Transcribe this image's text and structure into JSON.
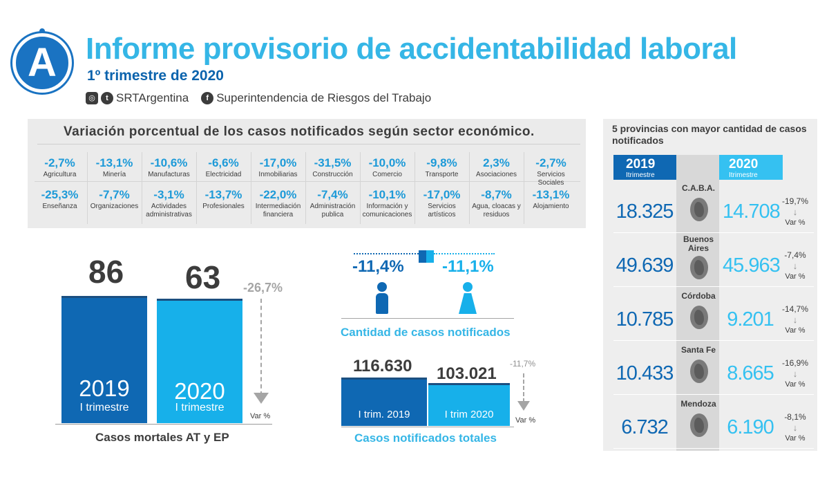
{
  "header": {
    "logo_letter": "A",
    "title": "Informe provisorio de accidentabilidad laboral",
    "subtitle": "1º trimestre de 2020",
    "social_handle": "SRTArgentina",
    "social_org": "Superintendencia de Riesgos del Trabajo",
    "icons": [
      "instagram-icon",
      "twitter-icon",
      "facebook-icon"
    ]
  },
  "sectors": {
    "title": "Variación porcentual de los casos notificados según sector económico.",
    "row1": [
      {
        "pct": "-2,7%",
        "label": "Agricultura"
      },
      {
        "pct": "-13,1%",
        "label": "Minería"
      },
      {
        "pct": "-10,6%",
        "label": "Manufacturas"
      },
      {
        "pct": "-6,6%",
        "label": "Electricidad"
      },
      {
        "pct": "-17,0%",
        "label": "Inmobiliarias"
      },
      {
        "pct": "-31,5%",
        "label": "Construcción"
      },
      {
        "pct": "-10,0%",
        "label": "Comercio"
      },
      {
        "pct": "-9,8%",
        "label": "Transporte"
      },
      {
        "pct": "2,3%",
        "label": "Asociaciones"
      },
      {
        "pct": "-2,7%",
        "label": "Servicios Sociales"
      }
    ],
    "row2": [
      {
        "pct": "-25,3%",
        "label": "Enseñanza"
      },
      {
        "pct": "-7,7%",
        "label": "Organizaciones"
      },
      {
        "pct": "-3,1%",
        "label": "Actividades administrativas"
      },
      {
        "pct": "-13,7%",
        "label": "Profesionales"
      },
      {
        "pct": "-22,0%",
        "label": "Intermediación financiera"
      },
      {
        "pct": "-7,4%",
        "label": "Administración publica"
      },
      {
        "pct": "-10,1%",
        "label": "Información y comunicaciones"
      },
      {
        "pct": "-17,0%",
        "label": "Servicios artísticos"
      },
      {
        "pct": "-8,7%",
        "label": "Agua, cloacas y residuos"
      },
      {
        "pct": "-13,1%",
        "label": "Alojamiento"
      }
    ]
  },
  "fatal": {
    "v2019": "86",
    "v2020": "63",
    "year2019": "2019",
    "sub2019": "I trimestre",
    "year2020": "2020",
    "sub2020": "I trimestre",
    "var": "-26,7%",
    "var_label": "Var %",
    "caption": "Casos mortales AT y EP"
  },
  "gender": {
    "male": "-11,4%",
    "female": "-11,1%",
    "caption": "Cantidad de casos notificados"
  },
  "totals": {
    "v2019": "116.630",
    "v2020": "103.021",
    "label2019": "I trim. 2019",
    "label2020": "I trim 2020",
    "var": "-11,7%",
    "var_label": "Var %",
    "caption": "Casos notificados totales"
  },
  "provinces": {
    "title": "5 provincias con mayor cantidad de casos notificados",
    "col2019": "2019",
    "col2019_sub": "Itrimestre",
    "col2020": "2020",
    "col2020_sub": "Itrimestre",
    "arrow": "↓",
    "rows": [
      {
        "name": "C.A.B.A.",
        "v2019": "18.325",
        "v2020": "14.708",
        "var": "-19,7%",
        "var_label": "Var %"
      },
      {
        "name": "Buenos Aires",
        "v2019": "49.639",
        "v2020": "45.963",
        "var": "-7,4%",
        "var_label": "Var %"
      },
      {
        "name": "Córdoba",
        "v2019": "10.785",
        "v2020": "9.201",
        "var": "-14,7%",
        "var_label": "Var %"
      },
      {
        "name": "Santa Fe",
        "v2019": "10.433",
        "v2020": "8.665",
        "var": "-16,9%",
        "var_label": "Var %"
      },
      {
        "name": "Mendoza",
        "v2019": "6.732",
        "v2020": "6.190",
        "var": "-8,1%",
        "var_label": "Var %"
      }
    ]
  },
  "colors": {
    "dark_blue": "#0f68b3",
    "light_blue": "#17b0ea",
    "title_blue": "#35b6e6",
    "gray_text": "#3c3c3c"
  }
}
